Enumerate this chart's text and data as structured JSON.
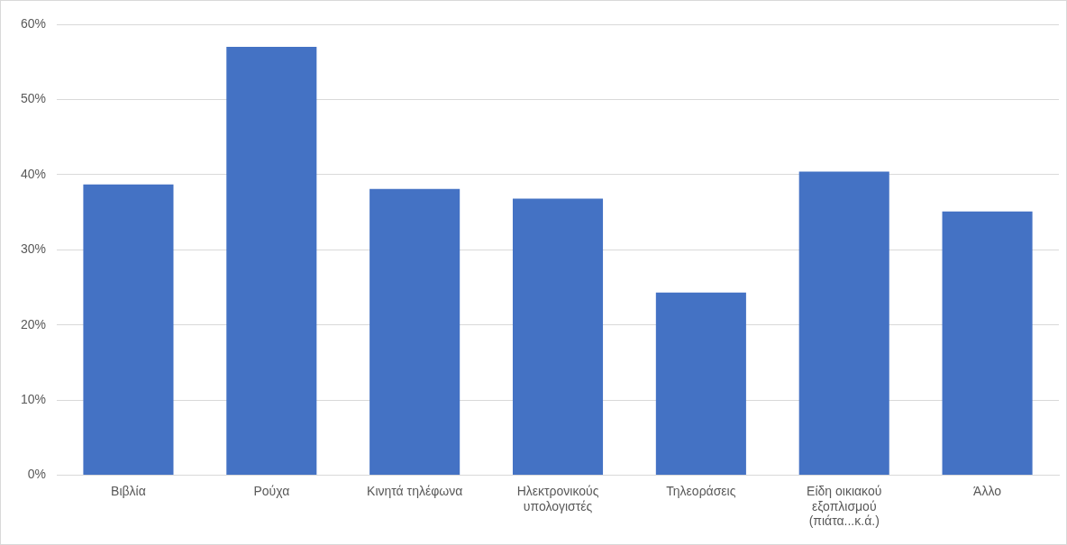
{
  "chart_data": {
    "type": "bar",
    "categories": [
      "Βιβλία",
      "Ρούχα",
      "Κινητά τηλέφωνα",
      "Ηλεκτρονικούς υπολογιστές",
      "Τηλεοράσεις",
      "Είδη οικιακού εξοπλισμού (πιάτα...κ.ά.)",
      "Άλλο"
    ],
    "values": [
      38.7,
      57.0,
      38.1,
      36.8,
      24.3,
      40.4,
      35.1
    ],
    "color": "#4472c4",
    "ylim": [
      0,
      60
    ],
    "yticks": [
      {
        "value": 0,
        "label": "0%"
      },
      {
        "value": 10,
        "label": "10%"
      },
      {
        "value": 20,
        "label": "20%"
      },
      {
        "value": 30,
        "label": "30%"
      },
      {
        "value": 40,
        "label": "40%"
      },
      {
        "value": 50,
        "label": "50%"
      },
      {
        "value": 60,
        "label": "60%"
      }
    ],
    "grid": "y",
    "legend": false
  }
}
